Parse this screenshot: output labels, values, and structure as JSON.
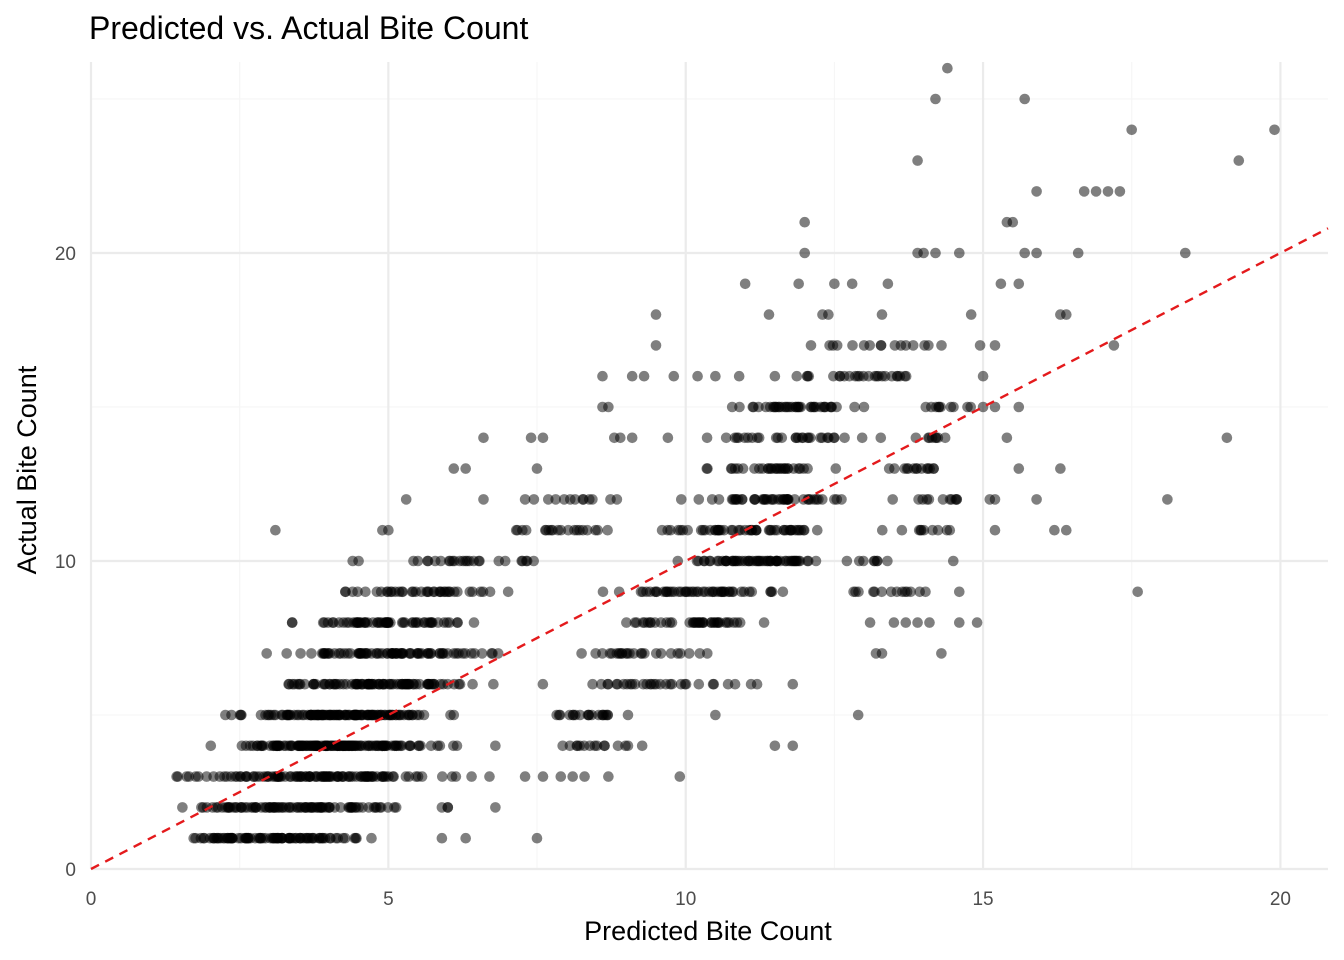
{
  "colors": {
    "background": "#ffffff",
    "grid_major": "#ebebeb",
    "grid_minor": "#f5f5f5",
    "points": "#000000",
    "reference_line": "#e41a1c",
    "tick_text": "#4d4d4d"
  },
  "chart_data": {
    "type": "scatter",
    "title": "Predicted vs. Actual Bite Count",
    "xlabel": "Predicted Bite Count",
    "ylabel": "Actual Bite Count",
    "xlim": [
      0,
      20.8
    ],
    "ylim": [
      0,
      26.2
    ],
    "x_ticks": [
      0,
      5,
      10,
      15,
      20
    ],
    "y_ticks": [
      0,
      10,
      20
    ],
    "x_minor_ticks": [
      2.5,
      7.5,
      12.5,
      17.5
    ],
    "y_minor_ticks": [
      5,
      15,
      25
    ],
    "grid": true,
    "legend": "none",
    "point_opacity": 0.5,
    "reference_line": {
      "type": "identity",
      "slope": 1,
      "intercept": 0,
      "style": "dashed"
    },
    "bands": [
      {
        "y": 1,
        "x_min": 0.85,
        "x_max": 5.2,
        "n": 90
      },
      {
        "y": 2,
        "x_min": 0.9,
        "x_max": 5.8,
        "n": 90
      },
      {
        "y": 3,
        "x_min": 1.0,
        "x_max": 6.6,
        "n": 110
      },
      {
        "y": 4,
        "x_min": 1.6,
        "x_max": 6.6,
        "n": 140
      },
      {
        "y": 5,
        "x_min": 2.0,
        "x_max": 6.4,
        "n": 120
      },
      {
        "y": 6,
        "x_min": 2.6,
        "x_max": 7.2,
        "n": 90
      },
      {
        "y": 7,
        "x_min": 2.6,
        "x_max": 7.4,
        "n": 80
      },
      {
        "y": 8,
        "x_min": 2.8,
        "x_max": 7.2,
        "n": 60
      },
      {
        "y": 9,
        "x_min": 3.7,
        "x_max": 7.4,
        "n": 40
      },
      {
        "y": 10,
        "x_min": 4.9,
        "x_max": 7.9,
        "n": 25
      },
      {
        "y": 11,
        "x_min": 6.5,
        "x_max": 9.3,
        "n": 20
      },
      {
        "y": 12,
        "x_min": 7.0,
        "x_max": 9.3,
        "n": 12
      },
      {
        "y": 7,
        "x_min": 8.0,
        "x_max": 10.5,
        "n": 25
      },
      {
        "y": 6,
        "x_min": 7.5,
        "x_max": 11.2,
        "n": 30
      },
      {
        "y": 5,
        "x_min": 7.4,
        "x_max": 9.4,
        "n": 20
      },
      {
        "y": 4,
        "x_min": 7.4,
        "x_max": 9.6,
        "n": 15
      },
      {
        "y": 8,
        "x_min": 8.4,
        "x_max": 11.9,
        "n": 40
      },
      {
        "y": 9,
        "x_min": 8.4,
        "x_max": 12.0,
        "n": 50
      },
      {
        "y": 10,
        "x_min": 9.7,
        "x_max": 12.6,
        "n": 60
      },
      {
        "y": 11,
        "x_min": 9.2,
        "x_max": 12.8,
        "n": 50
      },
      {
        "y": 12,
        "x_min": 9.7,
        "x_max": 13.1,
        "n": 45
      },
      {
        "y": 13,
        "x_min": 9.7,
        "x_max": 12.9,
        "n": 30
      },
      {
        "y": 14,
        "x_min": 9.9,
        "x_max": 13.6,
        "n": 30
      },
      {
        "y": 15,
        "x_min": 10.4,
        "x_max": 13.2,
        "n": 40
      },
      {
        "y": 16,
        "x_min": 11.0,
        "x_max": 14.8,
        "n": 25
      },
      {
        "y": 17,
        "x_min": 11.4,
        "x_max": 15.3,
        "n": 15
      },
      {
        "y": 9,
        "x_min": 12.4,
        "x_max": 14.3,
        "n": 14
      },
      {
        "y": 10,
        "x_min": 12.6,
        "x_max": 13.6,
        "n": 8
      },
      {
        "y": 11,
        "x_min": 13.0,
        "x_max": 14.8,
        "n": 10
      },
      {
        "y": 12,
        "x_min": 13.2,
        "x_max": 15.3,
        "n": 12
      },
      {
        "y": 13,
        "x_min": 13.0,
        "x_max": 14.7,
        "n": 14
      },
      {
        "y": 14,
        "x_min": 13.7,
        "x_max": 14.7,
        "n": 8
      },
      {
        "y": 15,
        "x_min": 13.7,
        "x_max": 15.1,
        "n": 10
      }
    ],
    "points": [
      [
        3.1,
        11
      ],
      [
        4.9,
        11
      ],
      [
        5.0,
        11
      ],
      [
        5.3,
        12
      ],
      [
        6.6,
        12
      ],
      [
        6.1,
        13
      ],
      [
        6.3,
        13
      ],
      [
        6.6,
        14
      ],
      [
        7.4,
        14
      ],
      [
        7.6,
        14
      ],
      [
        7.5,
        13
      ],
      [
        7.3,
        12
      ],
      [
        8.6,
        15
      ],
      [
        8.7,
        15
      ],
      [
        8.6,
        16
      ],
      [
        8.8,
        14
      ],
      [
        8.9,
        14
      ],
      [
        9.1,
        14
      ],
      [
        9.1,
        16
      ],
      [
        9.3,
        16
      ],
      [
        9.5,
        17
      ],
      [
        9.5,
        18
      ],
      [
        9.7,
        14
      ],
      [
        9.8,
        16
      ],
      [
        10.2,
        16
      ],
      [
        10.5,
        16
      ],
      [
        10.9,
        16
      ],
      [
        11.0,
        19
      ],
      [
        11.4,
        18
      ],
      [
        11.5,
        16
      ],
      [
        11.9,
        19
      ],
      [
        12.0,
        20
      ],
      [
        12.0,
        21
      ],
      [
        12.3,
        18
      ],
      [
        12.4,
        18
      ],
      [
        12.5,
        19
      ],
      [
        12.8,
        19
      ],
      [
        13.0,
        17
      ],
      [
        13.3,
        18
      ],
      [
        13.4,
        19
      ],
      [
        13.7,
        17
      ],
      [
        13.9,
        20
      ],
      [
        13.9,
        23
      ],
      [
        14.0,
        20
      ],
      [
        14.2,
        20
      ],
      [
        14.2,
        25
      ],
      [
        14.4,
        26
      ],
      [
        14.6,
        20
      ],
      [
        14.8,
        18
      ],
      [
        15.2,
        17
      ],
      [
        15.3,
        19
      ],
      [
        15.4,
        21
      ],
      [
        15.5,
        21
      ],
      [
        15.6,
        19
      ],
      [
        15.7,
        20
      ],
      [
        15.7,
        25
      ],
      [
        15.9,
        20
      ],
      [
        15.9,
        22
      ],
      [
        16.3,
        18
      ],
      [
        16.4,
        18
      ],
      [
        16.6,
        20
      ],
      [
        16.7,
        22
      ],
      [
        16.9,
        22
      ],
      [
        17.1,
        22
      ],
      [
        17.2,
        17
      ],
      [
        17.3,
        22
      ],
      [
        17.5,
        24
      ],
      [
        18.4,
        20
      ],
      [
        19.3,
        23
      ],
      [
        19.9,
        24
      ],
      [
        19.1,
        14
      ],
      [
        18.1,
        12
      ],
      [
        17.6,
        9
      ],
      [
        16.3,
        13
      ],
      [
        16.2,
        11
      ],
      [
        16.4,
        11
      ],
      [
        15.9,
        12
      ],
      [
        15.6,
        13
      ],
      [
        15.6,
        15
      ],
      [
        15.4,
        14
      ],
      [
        15.2,
        15
      ],
      [
        15.2,
        12
      ],
      [
        15.2,
        11
      ],
      [
        15.0,
        16
      ],
      [
        15.0,
        15
      ],
      [
        14.9,
        8
      ],
      [
        14.6,
        8
      ],
      [
        14.6,
        9
      ],
      [
        14.3,
        7
      ],
      [
        14.5,
        10
      ],
      [
        14.1,
        8
      ],
      [
        13.9,
        8
      ],
      [
        13.7,
        8
      ],
      [
        13.5,
        8
      ],
      [
        13.3,
        7
      ],
      [
        13.2,
        7
      ],
      [
        13.1,
        8
      ],
      [
        12.9,
        5
      ],
      [
        11.8,
        4
      ],
      [
        11.5,
        4
      ],
      [
        11.8,
        6
      ],
      [
        11.2,
        6
      ],
      [
        11.1,
        6
      ],
      [
        10.5,
        5
      ],
      [
        9.9,
        3
      ],
      [
        7.5,
        1
      ],
      [
        6.3,
        1
      ],
      [
        5.9,
        1
      ],
      [
        6.0,
        2
      ],
      [
        6.0,
        2
      ],
      [
        6.8,
        2
      ],
      [
        5.9,
        2
      ],
      [
        6.4,
        3
      ],
      [
        6.7,
        3
      ],
      [
        7.3,
        3
      ],
      [
        7.6,
        3
      ],
      [
        7.9,
        3
      ],
      [
        8.1,
        3
      ],
      [
        8.3,
        3
      ],
      [
        8.7,
        3
      ],
      [
        6.8,
        4
      ],
      [
        4.4,
        10
      ],
      [
        4.5,
        10
      ]
    ]
  }
}
